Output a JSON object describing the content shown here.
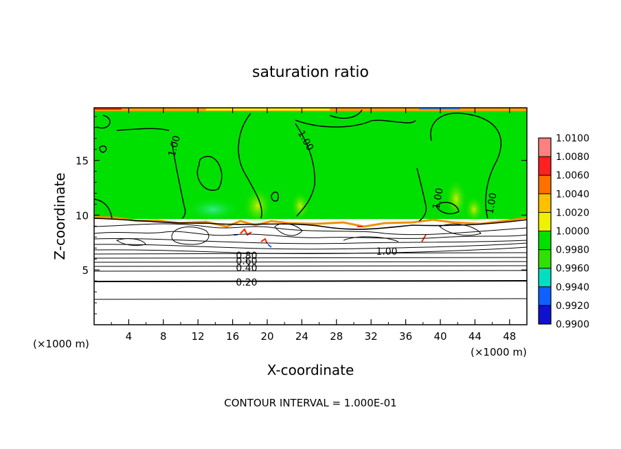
{
  "chart_data": {
    "type": "heatmap",
    "title": "saturation ratio",
    "xlabel": "X-coordinate",
    "ylabel": "Z-coordinate",
    "x_unit_label": "(×1000 m)",
    "y_unit_label": "(×1000 m)",
    "xlim": [
      0,
      50
    ],
    "ylim": [
      0,
      19.8
    ],
    "x_ticks": [
      4,
      8,
      12,
      16,
      20,
      24,
      28,
      32,
      36,
      40,
      44,
      48
    ],
    "y_ticks": [
      5,
      10,
      15
    ],
    "footer": "CONTOUR INTERVAL = 1.000E-01",
    "colorbar": {
      "levels": [
        1.01,
        1.008,
        1.006,
        1.004,
        1.002,
        1.0,
        0.998,
        0.996,
        0.994,
        0.992,
        0.99
      ],
      "labels": [
        "1.0100",
        "1.0080",
        "1.0060",
        "1.0040",
        "1.0020",
        "1.0000",
        "0.9980",
        "0.9960",
        "0.9940",
        "0.9920",
        "0.9900"
      ],
      "colors": [
        "#ff8080",
        "#ff2020",
        "#ff7000",
        "#ffc000",
        "#f0f000",
        "#00e000",
        "#30e000",
        "#00e0c0",
        "#1060ff",
        "#1010d0",
        "#6020a0"
      ]
    },
    "contour_labels": [
      "1.00",
      "1.00",
      "1.00",
      "1.00",
      "1.00",
      "0.80",
      "0.60",
      "0.40",
      "0.20"
    ],
    "contour_levels": [
      0.2,
      0.3,
      0.4,
      0.5,
      0.6,
      0.7,
      0.8,
      0.9,
      1.0
    ]
  },
  "colors": {
    "background_field": "#00e000",
    "cloud_free_region": "#ffffff"
  }
}
